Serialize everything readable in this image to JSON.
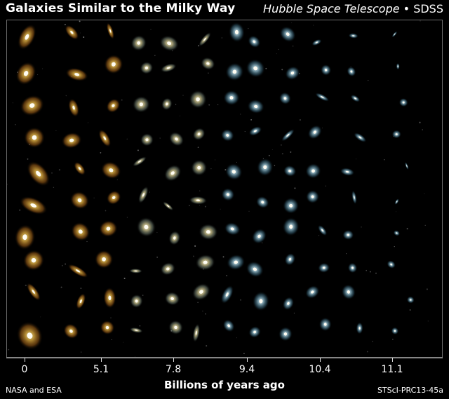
{
  "header": {
    "title": "Galaxies Similar to the Milky Way",
    "credit_telescope": "Hubble Space Telescope",
    "credit_separator": " • ",
    "credit_survey": "SDSS"
  },
  "axis": {
    "ticks": [
      "0",
      "5.1",
      "7.8",
      "9.4",
      "10.4",
      "11.1"
    ],
    "label": "Billions of years ago"
  },
  "footer": {
    "left": "NASA and ESA",
    "right": "STScI-PRC13-45a"
  },
  "colors": {
    "background": "#000000",
    "near_galaxy": "#f2b23a",
    "mid_galaxy": "#e8d68a",
    "far_galaxy": "#8fc3da"
  },
  "image": {
    "rows": 10,
    "columns": 6
  }
}
